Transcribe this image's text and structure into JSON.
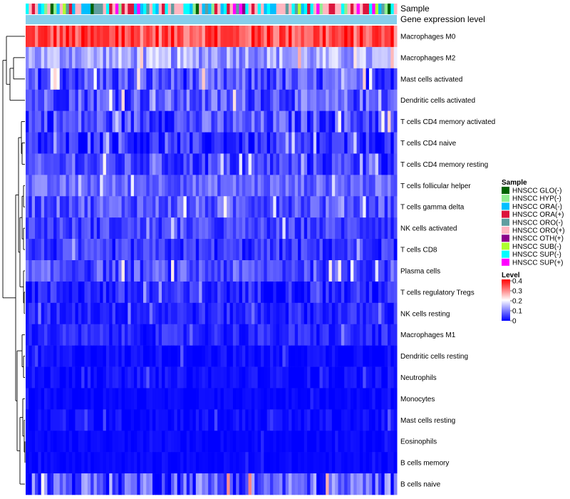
{
  "chart_data": {
    "type": "heatmap",
    "annotation_tracks": [
      "Sample",
      "Gene expression level"
    ],
    "rows": [
      {
        "label": "Macrophages M0",
        "level": 0.34,
        "spread": 0.07
      },
      {
        "label": "Macrophages M2",
        "level": 0.13,
        "spread": 0.06
      },
      {
        "label": "Mast cells activated",
        "level": 0.06,
        "spread": 0.06
      },
      {
        "label": "Dendritic cells activated",
        "level": 0.07,
        "spread": 0.06
      },
      {
        "label": "T cells CD4 memory activated",
        "level": 0.06,
        "spread": 0.06
      },
      {
        "label": "T cells CD4 naive",
        "level": 0.03,
        "spread": 0.05
      },
      {
        "label": "T cells CD4 memory resting",
        "level": 0.05,
        "spread": 0.05
      },
      {
        "label": "T cells follicular helper",
        "level": 0.08,
        "spread": 0.04
      },
      {
        "label": "T cells gamma delta",
        "level": 0.07,
        "spread": 0.05
      },
      {
        "label": "NK cells activated",
        "level": 0.05,
        "spread": 0.04
      },
      {
        "label": "T cells CD8",
        "level": 0.04,
        "spread": 0.04
      },
      {
        "label": "Plasma cells",
        "level": 0.06,
        "spread": 0.05
      },
      {
        "label": "T cells regulatory  Tregs",
        "level": 0.03,
        "spread": 0.04
      },
      {
        "label": "NK cells resting",
        "level": 0.03,
        "spread": 0.03
      },
      {
        "label": "Macrophages M1",
        "level": 0.03,
        "spread": 0.03
      },
      {
        "label": "Dendritic cells resting",
        "level": 0.01,
        "spread": 0.02
      },
      {
        "label": "Neutrophils",
        "level": 0.01,
        "spread": 0.02
      },
      {
        "label": "Monocytes",
        "level": 0.005,
        "spread": 0.01
      },
      {
        "label": "Mast cells resting",
        "level": 0.01,
        "spread": 0.02
      },
      {
        "label": "Eosinophils",
        "level": 0.005,
        "spread": 0.01
      },
      {
        "label": "B cells memory",
        "level": 0.005,
        "spread": 0.01
      },
      {
        "label": "B cells naive",
        "level": 0.07,
        "spread": 0.08
      }
    ],
    "n_samples": 120,
    "sample_legend": {
      "title": "Sample",
      "entries": [
        {
          "name": "HNSCC GLO(-)",
          "color": "#006400"
        },
        {
          "name": "HNSCC HYP(-)",
          "color": "#90ee90"
        },
        {
          "name": "HNSCC ORA(-)",
          "color": "#00bfff"
        },
        {
          "name": "HNSCC ORA(+)",
          "color": "#dc143c"
        },
        {
          "name": "HNSCC ORO(-)",
          "color": "#5f9ea0"
        },
        {
          "name": "HNSCC ORO(+)",
          "color": "#ffb6c1"
        },
        {
          "name": "HNSCC OTH(+)",
          "color": "#8b008b"
        },
        {
          "name": "HNSCC SUB(-)",
          "color": "#adff2f"
        },
        {
          "name": "HNSCC SUP(-)",
          "color": "#00ffff"
        },
        {
          "name": "HNSCC SUP(+)",
          "color": "#ff00ff"
        }
      ]
    },
    "level_legend": {
      "title": "Level",
      "ticks": [
        "0.4",
        "0.3",
        "0.2",
        "0.1",
        "0"
      ],
      "min": 0,
      "max": 0.4,
      "colors": [
        "#0000ff",
        "#ffffff",
        "#ff0000"
      ],
      "gene_level_color": "#87ceeb"
    }
  }
}
